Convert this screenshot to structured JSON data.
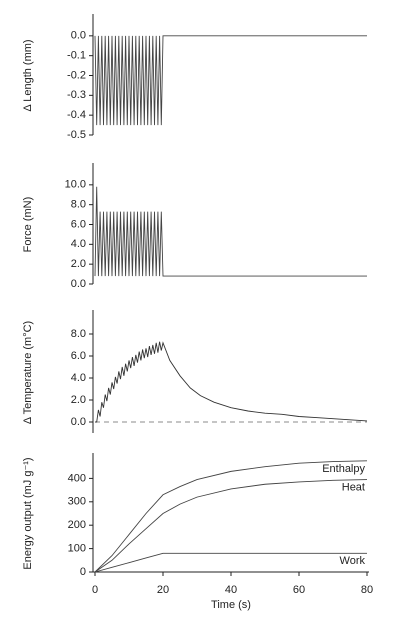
{
  "chart_data": [
    {
      "type": "line",
      "ylabel": "Δ Length (mm)",
      "xlim": [
        0,
        80
      ],
      "ylim": [
        -0.5,
        0.1
      ],
      "yticks": [
        {
          "value": 0,
          "label": "0.0"
        },
        {
          "value": -0.1,
          "label": "-0.1"
        },
        {
          "value": -0.2,
          "label": "-0.2"
        },
        {
          "value": -0.3,
          "label": "-0.3"
        },
        {
          "value": -0.4,
          "label": "-0.4"
        },
        {
          "value": -0.5,
          "label": "-0.5"
        }
      ],
      "x": [
        0,
        0.5,
        1,
        1.5,
        2,
        2.5,
        3,
        3.5,
        4,
        4.5,
        5,
        5.5,
        6,
        6.5,
        7,
        7.5,
        8,
        8.5,
        9,
        9.5,
        10,
        10.5,
        11,
        11.5,
        12,
        12.5,
        13,
        13.5,
        14,
        14.5,
        15,
        15.5,
        16,
        16.5,
        17,
        17.5,
        18,
        18.5,
        19,
        19.5,
        20,
        80
      ],
      "series": [
        {
          "color": "#444",
          "values": [
            0,
            -0.45,
            0,
            -0.45,
            0,
            -0.45,
            0,
            -0.45,
            0,
            -0.45,
            0,
            -0.45,
            0,
            -0.45,
            0,
            -0.45,
            0,
            -0.45,
            0,
            -0.45,
            0,
            -0.45,
            0,
            -0.45,
            0,
            -0.45,
            0,
            -0.45,
            0,
            -0.45,
            0,
            -0.45,
            0,
            -0.45,
            0,
            -0.45,
            0,
            -0.45,
            0,
            -0.45,
            0,
            0
          ]
        }
      ]
    },
    {
      "type": "line",
      "ylabel": "Force (mN)",
      "xlim": [
        0,
        80
      ],
      "ylim": [
        0,
        12
      ],
      "yticks": [
        {
          "value": 0,
          "label": "0.0"
        },
        {
          "value": 2,
          "label": "2.0"
        },
        {
          "value": 4,
          "label": "4.0"
        },
        {
          "value": 6,
          "label": "6.0"
        },
        {
          "value": 8,
          "label": "8.0"
        },
        {
          "value": 10,
          "label": "10.0"
        }
      ],
      "x": [
        0,
        0.5,
        1,
        1.5,
        2,
        2.5,
        3,
        3.5,
        4,
        4.5,
        5,
        5.5,
        6,
        6.5,
        7,
        7.5,
        8,
        8.5,
        9,
        9.5,
        10,
        10.5,
        11,
        11.5,
        12,
        12.5,
        13,
        13.5,
        14,
        14.5,
        15,
        15.5,
        16,
        16.5,
        17,
        17.5,
        18,
        18.5,
        19,
        19.5,
        20,
        80
      ],
      "series": [
        {
          "color": "#444",
          "values": [
            0.8,
            9.8,
            0.8,
            7.3,
            0.8,
            7.3,
            0.8,
            7.3,
            0.8,
            7.3,
            0.8,
            7.3,
            0.8,
            7.3,
            0.8,
            7.3,
            0.8,
            7.3,
            0.8,
            7.3,
            0.8,
            7.3,
            0.8,
            7.3,
            0.8,
            7.3,
            0.8,
            7.3,
            0.8,
            7.3,
            0.8,
            7.3,
            0.8,
            7.3,
            0.8,
            7.3,
            0.8,
            7.3,
            0.8,
            7.3,
            0.8,
            0.8
          ]
        }
      ]
    },
    {
      "type": "line",
      "ylabel": "Δ Temperature (m°C)",
      "xlim": [
        0,
        80
      ],
      "ylim": [
        -1,
        10
      ],
      "reference_line": 0,
      "yticks": [
        {
          "value": 0,
          "label": "0.0"
        },
        {
          "value": 2,
          "label": "2.0"
        },
        {
          "value": 4,
          "label": "4.0"
        },
        {
          "value": 6,
          "label": "6.0"
        },
        {
          "value": 8,
          "label": "8.0"
        }
      ],
      "x": [
        0,
        0.5,
        1,
        1.5,
        2,
        2.5,
        3,
        3.5,
        4,
        4.5,
        5,
        5.5,
        6,
        6.5,
        7,
        7.5,
        8,
        8.5,
        9,
        9.5,
        10,
        10.5,
        11,
        11.5,
        12,
        12.5,
        13,
        13.5,
        14,
        14.5,
        15,
        15.5,
        16,
        16.5,
        17,
        17.5,
        18,
        18.5,
        19,
        19.5,
        20,
        22,
        25,
        28,
        31,
        35,
        40,
        45,
        50,
        55,
        60,
        65,
        70,
        75,
        80
      ],
      "series": [
        {
          "color": "#333",
          "values": [
            0,
            0,
            1.1,
            0.5,
            1.8,
            1.3,
            2.5,
            1.9,
            3.1,
            2.5,
            3.6,
            3.0,
            4.1,
            3.5,
            4.6,
            3.9,
            5.0,
            4.2,
            5.3,
            4.6,
            5.6,
            4.9,
            5.9,
            5.1,
            6.1,
            5.4,
            6.4,
            5.6,
            6.6,
            5.8,
            6.7,
            5.9,
            6.9,
            6.1,
            7.0,
            6.2,
            7.2,
            6.3,
            7.3,
            6.5,
            7.2,
            5.6,
            4.2,
            3.1,
            2.4,
            1.8,
            1.3,
            1.0,
            0.8,
            0.7,
            0.5,
            0.4,
            0.3,
            0.2,
            0.1
          ]
        }
      ]
    },
    {
      "type": "line",
      "ylabel": "Energy output (mJ g⁻¹)",
      "xlabel": "Time (s)",
      "xlim": [
        0,
        80
      ],
      "ylim": [
        0,
        500
      ],
      "yticks": [
        0,
        100,
        200,
        300,
        400
      ],
      "xticks": [
        0,
        20,
        40,
        60,
        80
      ],
      "x": [
        0,
        5,
        10,
        15,
        20,
        25,
        30,
        40,
        50,
        60,
        70,
        80
      ],
      "series": [
        {
          "name": "Enthalpy",
          "color": "#444",
          "values": [
            0,
            70,
            160,
            250,
            330,
            365,
            395,
            430,
            450,
            465,
            472,
            475
          ]
        },
        {
          "name": "Heat",
          "color": "#444",
          "values": [
            0,
            50,
            120,
            185,
            250,
            290,
            320,
            355,
            375,
            385,
            392,
            395
          ]
        },
        {
          "name": "Work",
          "color": "#444",
          "values": [
            0,
            20,
            40,
            60,
            80,
            80,
            80,
            80,
            80,
            80,
            80,
            80
          ]
        }
      ]
    }
  ]
}
